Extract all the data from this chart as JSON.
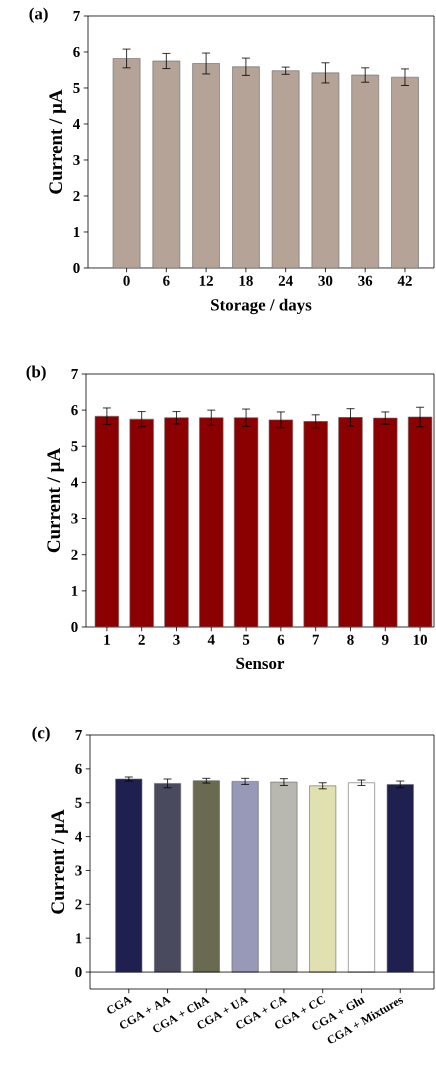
{
  "chart_data": [
    {
      "type": "bar",
      "title": "(a)",
      "xlabel": "Storage / days",
      "ylabel": "Current / µA",
      "categories": [
        "0",
        "6",
        "12",
        "18",
        "24",
        "30",
        "36",
        "42"
      ],
      "values": [
        5.82,
        5.75,
        5.68,
        5.59,
        5.48,
        5.42,
        5.36,
        5.3
      ],
      "errors": [
        0.26,
        0.21,
        0.29,
        0.24,
        0.1,
        0.28,
        0.2,
        0.23
      ],
      "color": "#b5a397",
      "ylim": [
        0,
        7
      ],
      "yticks": [
        0,
        1,
        2,
        3,
        4,
        5,
        6,
        7
      ]
    },
    {
      "type": "bar",
      "title": "(b)",
      "xlabel": "Sensor",
      "ylabel": "Current / µA",
      "categories": [
        "1",
        "2",
        "3",
        "4",
        "5",
        "6",
        "7",
        "8",
        "9",
        "10"
      ],
      "values": [
        5.83,
        5.75,
        5.79,
        5.79,
        5.79,
        5.73,
        5.69,
        5.8,
        5.78,
        5.81
      ],
      "errors": [
        0.23,
        0.21,
        0.17,
        0.21,
        0.24,
        0.22,
        0.18,
        0.24,
        0.17,
        0.27
      ],
      "color": "#8b0000",
      "ylim": [
        0,
        7
      ],
      "yticks": [
        0,
        1,
        2,
        3,
        4,
        5,
        6,
        7
      ]
    },
    {
      "type": "bar",
      "title": "(c)",
      "ylabel": "Current / µA",
      "categories": [
        "CGA",
        "CGA + AA",
        "CGA + ChA",
        "CGA + UA",
        "CGA + CA",
        "CGA + CC",
        "CGA + Glu",
        "CGA + Mixtures"
      ],
      "values": [
        5.7,
        5.57,
        5.65,
        5.63,
        5.61,
        5.5,
        5.59,
        5.54
      ],
      "errors": [
        0.06,
        0.13,
        0.07,
        0.09,
        0.1,
        0.09,
        0.08,
        0.1
      ],
      "colors": [
        "#1f2050",
        "#4a4a5e",
        "#6a6a50",
        "#9898b8",
        "#b8b8b0",
        "#e0e0b0",
        "#ffffff",
        "#1f2050"
      ],
      "ref_lines": [
        {
          "axis": "y",
          "value": 0,
          "color": "#000000"
        }
      ],
      "ylim": [
        -0.5,
        7
      ],
      "yticks": [
        0,
        1,
        2,
        3,
        4,
        5,
        6,
        7
      ]
    }
  ]
}
